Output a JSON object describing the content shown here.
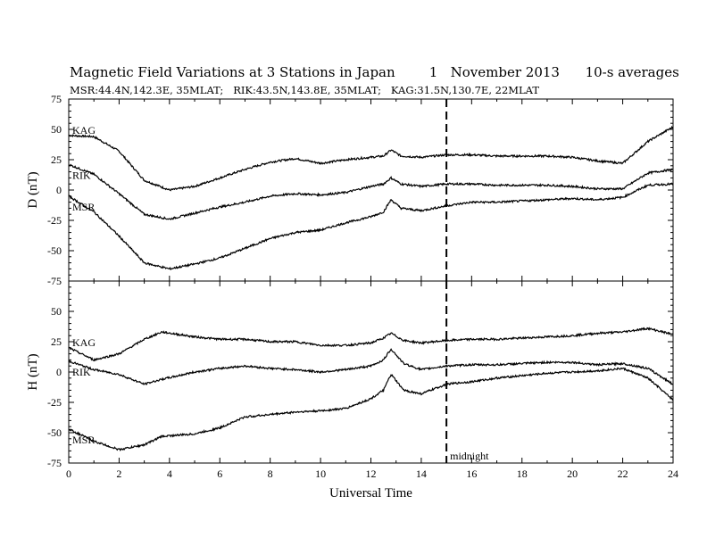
{
  "title": "Magnetic Field Variations at 3 Stations in Japan        1   November 2013      10-s averages",
  "subtitle": "MSR:44.4N,142.3E, 35MLAT;   RIK:43.5N,143.8E, 35MLAT;   KAG:31.5N,130.7E, 22MLAT",
  "chart_data": [
    {
      "type": "line",
      "panel": "top",
      "ylabel": "D (nT)",
      "xlabel": "",
      "xlim": [
        0,
        24
      ],
      "ylim": [
        -75,
        75
      ],
      "yticks": [
        -75,
        -50,
        -25,
        0,
        25,
        50,
        75
      ],
      "xticks": [
        0,
        2,
        4,
        6,
        8,
        10,
        12,
        14,
        16,
        18,
        20,
        22,
        24
      ],
      "midline": 15,
      "x": [
        0,
        1,
        2,
        3,
        4,
        5,
        6,
        7,
        8,
        9,
        10,
        11,
        12,
        12.5,
        12.8,
        13.2,
        14,
        15,
        16,
        17,
        18,
        19,
        20,
        21,
        22,
        23,
        24
      ],
      "series": [
        {
          "name": "KAG",
          "values": [
            45,
            44,
            32,
            8,
            0,
            3,
            10,
            17,
            23,
            26,
            22,
            25,
            27,
            28,
            33,
            28,
            27,
            29,
            29,
            28,
            28,
            28,
            27,
            24,
            22,
            40,
            52
          ]
        },
        {
          "name": "RIK",
          "values": [
            21,
            13,
            -3,
            -20,
            -24,
            -19,
            -14,
            -10,
            -5,
            -3,
            -4,
            -2,
            3,
            5,
            10,
            5,
            3,
            5,
            5,
            4,
            4,
            4,
            3,
            1,
            1,
            14,
            17
          ]
        },
        {
          "name": "MSR",
          "values": [
            -5,
            -18,
            -38,
            -60,
            -65,
            -61,
            -56,
            -48,
            -40,
            -35,
            -33,
            -27,
            -22,
            -18,
            -8,
            -15,
            -17,
            -13,
            -10,
            -10,
            -9,
            -8,
            -7,
            -8,
            -6,
            4,
            5
          ]
        }
      ]
    },
    {
      "type": "line",
      "panel": "bottom",
      "ylabel": "H (nT)",
      "xlabel": "Universal Time",
      "xlim": [
        0,
        24
      ],
      "ylim": [
        -75,
        75
      ],
      "yticks": [
        -75,
        -50,
        -25,
        0,
        25,
        50,
        75
      ],
      "xticks": [
        0,
        2,
        4,
        6,
        8,
        10,
        12,
        14,
        16,
        18,
        20,
        22,
        24
      ],
      "midline": 15,
      "midline_label": "midnight",
      "x": [
        0,
        1,
        2,
        3,
        3.7,
        5,
        6,
        7,
        8,
        9,
        10,
        11,
        12,
        12.5,
        12.8,
        13.3,
        14,
        15,
        16,
        17,
        18,
        19,
        20,
        21,
        22,
        23,
        24
      ],
      "series": [
        {
          "name": "KAG",
          "values": [
            20,
            10,
            15,
            27,
            33,
            29,
            27,
            27,
            25,
            25,
            22,
            22,
            24,
            28,
            32,
            26,
            24,
            26,
            27,
            27,
            28,
            29,
            30,
            32,
            33,
            36,
            31
          ]
        },
        {
          "name": "RIK",
          "values": [
            9,
            2,
            -2,
            -10,
            -6,
            0,
            3,
            5,
            3,
            2,
            0,
            2,
            5,
            10,
            19,
            7,
            2,
            5,
            6,
            6,
            7,
            8,
            8,
            6,
            7,
            3,
            -10
          ]
        },
        {
          "name": "MSR",
          "values": [
            -47,
            -57,
            -64,
            -60,
            -53,
            -51,
            -46,
            -37,
            -35,
            -33,
            -32,
            -30,
            -22,
            -15,
            -2,
            -15,
            -18,
            -10,
            -8,
            -5,
            -3,
            -1,
            0,
            1,
            3,
            -5,
            -23
          ]
        }
      ]
    }
  ]
}
